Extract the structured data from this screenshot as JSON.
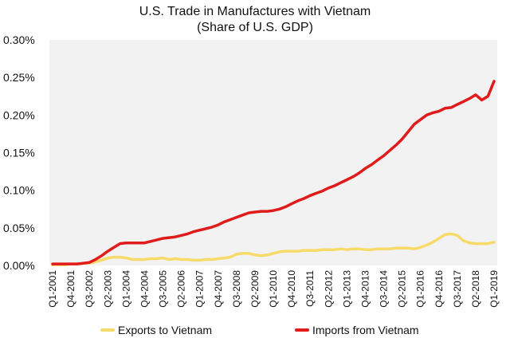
{
  "chart_data": {
    "type": "line",
    "title": "U.S. Trade in Manufactures with Vietnam",
    "subtitle": "(Share of U.S. GDP)",
    "xlabel": "",
    "ylabel": "",
    "ylim": [
      0,
      0.3
    ],
    "y_ticks": [
      "0.00%",
      "0.05%",
      "0.10%",
      "0.15%",
      "0.20%",
      "0.25%",
      "0.30%"
    ],
    "y_tick_values": [
      0,
      0.05,
      0.1,
      0.15,
      0.2,
      0.25,
      0.3
    ],
    "x_tick_labels": [
      "Q1-2001",
      "Q4-2001",
      "Q3-2002",
      "Q2-2003",
      "Q1-2004",
      "Q4-2004",
      "Q3-2005",
      "Q2-2006",
      "Q1-2007",
      "Q4-2007",
      "Q3-2008",
      "Q2-2009",
      "Q1-2010",
      "Q4-2010",
      "Q3-2011",
      "Q2-2012",
      "Q1-2013",
      "Q4-2013",
      "Q3-2014",
      "Q2-2015",
      "Q1-2016",
      "Q4-2016",
      "Q3-2017",
      "Q2-2018",
      "Q1-2019"
    ],
    "x": [
      "Q1-2001",
      "Q2-2001",
      "Q3-2001",
      "Q4-2001",
      "Q1-2002",
      "Q2-2002",
      "Q3-2002",
      "Q4-2002",
      "Q1-2003",
      "Q2-2003",
      "Q3-2003",
      "Q4-2003",
      "Q1-2004",
      "Q2-2004",
      "Q3-2004",
      "Q4-2004",
      "Q1-2005",
      "Q2-2005",
      "Q3-2005",
      "Q4-2005",
      "Q1-2006",
      "Q2-2006",
      "Q3-2006",
      "Q4-2006",
      "Q1-2007",
      "Q2-2007",
      "Q3-2007",
      "Q4-2007",
      "Q1-2008",
      "Q2-2008",
      "Q3-2008",
      "Q4-2008",
      "Q1-2009",
      "Q2-2009",
      "Q3-2009",
      "Q4-2009",
      "Q1-2010",
      "Q2-2010",
      "Q3-2010",
      "Q4-2010",
      "Q1-2011",
      "Q2-2011",
      "Q3-2011",
      "Q4-2011",
      "Q1-2012",
      "Q2-2012",
      "Q3-2012",
      "Q4-2012",
      "Q1-2013",
      "Q2-2013",
      "Q3-2013",
      "Q4-2013",
      "Q1-2014",
      "Q2-2014",
      "Q3-2014",
      "Q4-2014",
      "Q1-2015",
      "Q2-2015",
      "Q3-2015",
      "Q4-2015",
      "Q1-2016",
      "Q2-2016",
      "Q3-2016",
      "Q4-2016",
      "Q1-2017",
      "Q2-2017",
      "Q3-2017",
      "Q4-2017",
      "Q1-2018",
      "Q2-2018",
      "Q3-2018",
      "Q4-2018",
      "Q1-2019"
    ],
    "series": [
      {
        "name": "Exports to Vietnam",
        "color": "#f7db6a",
        "values": [
          0.001,
          0.001,
          0.001,
          0.002,
          0.002,
          0.003,
          0.003,
          0.005,
          0.007,
          0.01,
          0.011,
          0.011,
          0.01,
          0.008,
          0.008,
          0.008,
          0.009,
          0.009,
          0.01,
          0.008,
          0.009,
          0.008,
          0.008,
          0.007,
          0.007,
          0.008,
          0.008,
          0.009,
          0.01,
          0.011,
          0.015,
          0.016,
          0.016,
          0.014,
          0.013,
          0.014,
          0.016,
          0.018,
          0.019,
          0.019,
          0.019,
          0.02,
          0.02,
          0.02,
          0.021,
          0.021,
          0.021,
          0.022,
          0.021,
          0.022,
          0.022,
          0.021,
          0.021,
          0.022,
          0.022,
          0.022,
          0.023,
          0.023,
          0.023,
          0.022,
          0.024,
          0.027,
          0.031,
          0.036,
          0.041,
          0.042,
          0.04,
          0.033,
          0.03,
          0.029,
          0.029,
          0.029,
          0.031
        ]
      },
      {
        "name": "Imports from Vietnam",
        "color": "#e01b1b",
        "values": [
          0.002,
          0.002,
          0.002,
          0.002,
          0.002,
          0.003,
          0.004,
          0.008,
          0.013,
          0.019,
          0.024,
          0.029,
          0.03,
          0.03,
          0.03,
          0.03,
          0.032,
          0.034,
          0.036,
          0.037,
          0.038,
          0.04,
          0.042,
          0.045,
          0.047,
          0.049,
          0.051,
          0.054,
          0.058,
          0.061,
          0.064,
          0.067,
          0.07,
          0.071,
          0.072,
          0.072,
          0.073,
          0.075,
          0.078,
          0.082,
          0.086,
          0.089,
          0.093,
          0.096,
          0.099,
          0.103,
          0.106,
          0.11,
          0.114,
          0.118,
          0.123,
          0.129,
          0.134,
          0.14,
          0.146,
          0.153,
          0.16,
          0.168,
          0.178,
          0.188,
          0.194,
          0.2,
          0.203,
          0.205,
          0.209,
          0.21,
          0.214,
          0.218,
          0.222,
          0.227,
          0.22,
          0.225,
          0.245
        ]
      }
    ],
    "grid": false,
    "legend": "bottom",
    "colors": {
      "plot_background": "#f2f2f2",
      "page_background": "#ffffff"
    }
  }
}
